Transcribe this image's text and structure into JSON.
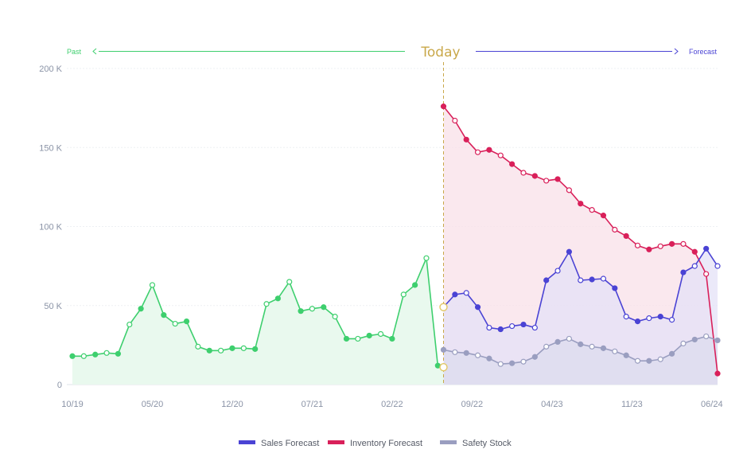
{
  "chart_data": {
    "type": "line",
    "header": {
      "past_label": "Past",
      "today_label": "Today",
      "forecast_label": "Forecast"
    },
    "yticks": [
      {
        "value": 0,
        "label": "0"
      },
      {
        "value": 50,
        "label": "50  K"
      },
      {
        "value": 100,
        "label": "100  K"
      },
      {
        "value": 150,
        "label": "150  K"
      },
      {
        "value": 200,
        "label": "200  K"
      }
    ],
    "ylim": [
      0,
      200
    ],
    "y_unit": "K",
    "xticks": [
      {
        "month": 0,
        "label": "10/19"
      },
      {
        "month": 7,
        "label": "05/20"
      },
      {
        "month": 14,
        "label": "12/20"
      },
      {
        "month": 21,
        "label": "07/21"
      },
      {
        "month": 28,
        "label": "02/22"
      },
      {
        "month": 35,
        "label": "09/22"
      },
      {
        "month": 42,
        "label": "04/23"
      },
      {
        "month": 49,
        "label": "11/23"
      },
      {
        "month": 56,
        "label": "06/24"
      }
    ],
    "x_start": "10/19",
    "x_end": "06/24",
    "today_month": 32.5,
    "grid": true,
    "legend_position": "bottom-center",
    "series": [
      {
        "name": "",
        "color": "#3ecf6e",
        "fill": "#e9f9ee",
        "x": [
          0,
          1,
          2,
          3,
          4,
          5,
          6,
          7,
          8,
          9,
          10,
          11,
          12,
          13,
          14,
          15,
          16,
          17,
          18,
          19,
          20,
          21,
          22,
          23,
          24,
          25,
          26,
          27,
          28,
          29,
          30,
          31,
          32,
          32.5
        ],
        "values": [
          18,
          18,
          19,
          20,
          19.5,
          38,
          48,
          63,
          44,
          38.5,
          40,
          24,
          21.5,
          21.5,
          23,
          23,
          22.5,
          51,
          54.5,
          65,
          46.5,
          48,
          49,
          43,
          29,
          29,
          31,
          32,
          29,
          57,
          63,
          80,
          12,
          11
        ],
        "filled": [
          true,
          false,
          true,
          false,
          true,
          false,
          true,
          false,
          true,
          false,
          true,
          false,
          true,
          false,
          true,
          false,
          true,
          false,
          true,
          false,
          true,
          false,
          true,
          false,
          true,
          false,
          true,
          false,
          true,
          false,
          true,
          false,
          true,
          false
        ]
      },
      {
        "name": "Sales Forecast",
        "color": "#4a43d4",
        "fill": "#e4e2f7",
        "x": [
          32.5,
          33.5,
          34.5,
          35.5,
          36.5,
          37.5,
          38.5,
          39.5,
          40.5,
          41.5,
          42.5,
          43.5,
          44.5,
          45.5,
          46.5,
          47.5,
          48.5,
          49.5,
          50.5,
          51.5,
          52.5,
          53.5,
          54.5,
          55.5,
          56.5
        ],
        "values": [
          49,
          57,
          58,
          49,
          36,
          35,
          37,
          38,
          36,
          66,
          72,
          84,
          66,
          66.5,
          67,
          61,
          43,
          40,
          42,
          43,
          41,
          71,
          75,
          86,
          75
        ],
        "filled": [
          false,
          true,
          false,
          true,
          false,
          true,
          false,
          true,
          false,
          true,
          false,
          true,
          false,
          true,
          false,
          true,
          false,
          true,
          false,
          true,
          false,
          true,
          false,
          true,
          false
        ]
      },
      {
        "name": "Inventory Forecast",
        "color": "#d9205a",
        "fill": "#f8e0e8",
        "x": [
          32.5,
          33.5,
          34.5,
          35.5,
          36.5,
          37.5,
          38.5,
          39.5,
          40.5,
          41.5,
          42.5,
          43.5,
          44.5,
          45.5,
          46.5,
          47.5,
          48.5,
          49.5,
          50.5,
          51.5,
          52.5,
          53.5,
          54.5,
          55.5,
          56.5
        ],
        "values": [
          176,
          167,
          155,
          147,
          148.5,
          145,
          139.5,
          134,
          132,
          129,
          130,
          123,
          114.5,
          110.5,
          107,
          98,
          94,
          88,
          85.5,
          87.5,
          89,
          89,
          84,
          70,
          7
        ],
        "filled": [
          true,
          false,
          true,
          false,
          true,
          false,
          true,
          false,
          true,
          false,
          true,
          false,
          true,
          false,
          true,
          false,
          true,
          false,
          true,
          false,
          true,
          false,
          true,
          false,
          true
        ]
      },
      {
        "name": "Safety Stock",
        "color": "#9a9ec0",
        "fill": "#dcdcee",
        "x": [
          32.5,
          33.5,
          34.5,
          35.5,
          36.5,
          37.5,
          38.5,
          39.5,
          40.5,
          41.5,
          42.5,
          43.5,
          44.5,
          45.5,
          46.5,
          47.5,
          48.5,
          49.5,
          50.5,
          51.5,
          52.5,
          53.5,
          54.5,
          55.5,
          56.5
        ],
        "values": [
          22,
          20.5,
          20,
          18.5,
          16.5,
          13,
          13.5,
          14.5,
          17.5,
          24,
          27,
          29,
          25.5,
          24,
          23,
          21,
          18.5,
          15,
          15,
          16,
          19.5,
          26,
          28.5,
          30.5,
          28
        ],
        "filled": [
          true,
          false,
          true,
          false,
          true,
          false,
          true,
          false,
          true,
          false,
          true,
          false,
          true,
          false,
          true,
          false,
          true,
          false,
          true,
          false,
          true,
          false,
          true,
          false,
          true
        ]
      }
    ]
  }
}
